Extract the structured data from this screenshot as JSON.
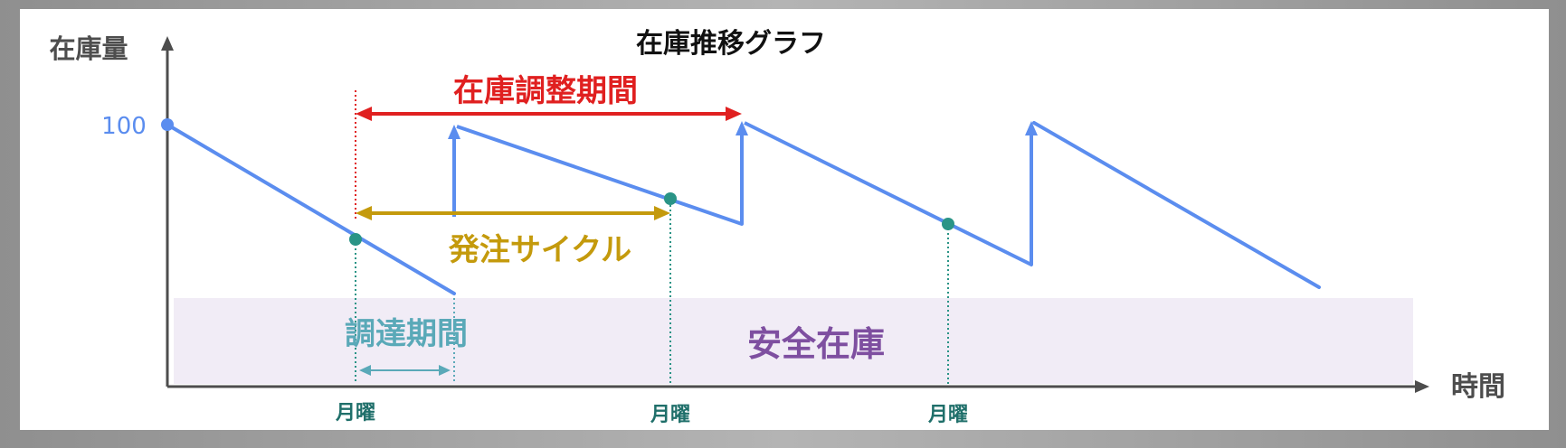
{
  "title": "在庫推移グラフ",
  "y_axis_label": "在庫量",
  "x_axis_label": "時間",
  "y_tick_label": "100",
  "x_tick_labels": [
    "月曜",
    "月曜",
    "月曜"
  ],
  "annotations": {
    "adjustment_period": "在庫調整期間",
    "order_cycle": "発注サイクル",
    "lead_time": "調達期間",
    "safety_stock": "安全在庫"
  },
  "colors": {
    "inventory_line": "#5b8def",
    "order_point": "#2a9486",
    "adjustment_period": "#e02020",
    "order_cycle": "#c49a0c",
    "lead_time": "#5aa9b8",
    "safety_stock_fill": "#f1ecf6",
    "safety_stock_text": "#7e4fa0",
    "axis": "#4d4d4d",
    "tick_label": "#1f6f6a"
  }
}
